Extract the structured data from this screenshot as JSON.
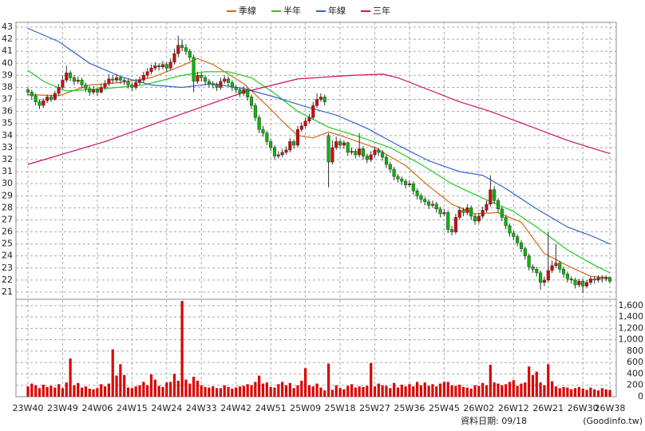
{
  "chart_data": {
    "type": "candlestick",
    "legend": "top",
    "grid": true,
    "up_color": "#dd0000",
    "down_color": "#00bb00",
    "volume_color": "#dd0000",
    "date_note": "資料日期: 09/18",
    "source": "(Goodinfo.tw)",
    "ylim": [
      20.4,
      43.4
    ],
    "yticks": [
      21,
      22,
      23,
      24,
      25,
      26,
      27,
      28,
      29,
      30,
      31,
      32,
      33,
      34,
      35,
      36,
      37,
      38,
      39,
      40,
      41,
      42,
      43
    ],
    "vol_ylim": [
      0,
      1710
    ],
    "vol_yticks": [
      0,
      200,
      400,
      600,
      800,
      {
        "value": 1000,
        "label": "1,000"
      },
      {
        "value": 1200,
        "label": "1,200"
      },
      {
        "value": 1400,
        "label": "1,400"
      },
      {
        "value": 1600,
        "label": "1,600"
      }
    ],
    "categories": [
      "23W40",
      null,
      null,
      null,
      null,
      null,
      null,
      null,
      null,
      "23W49",
      null,
      null,
      null,
      null,
      null,
      null,
      null,
      null,
      "24W06",
      null,
      null,
      null,
      null,
      null,
      null,
      null,
      null,
      "24W15",
      null,
      null,
      null,
      null,
      null,
      null,
      null,
      null,
      "24W24",
      null,
      null,
      null,
      null,
      null,
      null,
      null,
      null,
      "24W33",
      null,
      null,
      null,
      null,
      null,
      null,
      null,
      null,
      "24W42",
      null,
      null,
      null,
      null,
      null,
      null,
      null,
      null,
      "24W51",
      null,
      null,
      null,
      null,
      null,
      null,
      null,
      null,
      "25W09",
      null,
      null,
      null,
      null,
      null,
      null,
      null,
      null,
      "25W18",
      null,
      null,
      null,
      null,
      null,
      null,
      null,
      null,
      "25W27",
      null,
      null,
      null,
      null,
      null,
      null,
      null,
      null,
      "25W36",
      null,
      null,
      null,
      null,
      null,
      null,
      null,
      null,
      "25W45",
      null,
      null,
      null,
      null,
      null,
      null,
      null,
      null,
      "26W02",
      null,
      null,
      null,
      null,
      null,
      null,
      null,
      null,
      "26W12",
      null,
      null,
      null,
      null,
      null,
      null,
      null,
      null,
      "26W21",
      null,
      null,
      null,
      null,
      null,
      null,
      null,
      null,
      "26W30",
      null,
      null,
      null,
      null,
      null,
      null,
      "26W38"
    ],
    "ohlc": [
      [
        37.8,
        38.0,
        37.3,
        37.6
      ],
      [
        37.6,
        37.8,
        37.0,
        37.3
      ],
      [
        37.3,
        37.5,
        36.5,
        36.8
      ],
      [
        36.8,
        37.0,
        36.2,
        36.5
      ],
      [
        36.5,
        37.1,
        36.3,
        36.9
      ],
      [
        36.9,
        37.4,
        36.7,
        37.2
      ],
      [
        37.2,
        37.4,
        36.8,
        37.0
      ],
      [
        37.0,
        37.7,
        36.9,
        37.5
      ],
      [
        37.5,
        38.3,
        37.3,
        38.0
      ],
      [
        38.0,
        39.0,
        37.8,
        38.6
      ],
      [
        38.6,
        39.8,
        38.4,
        39.2
      ],
      [
        39.2,
        39.4,
        38.5,
        38.8
      ],
      [
        38.8,
        39.0,
        38.2,
        38.5
      ],
      [
        38.5,
        38.9,
        38.3,
        38.6
      ],
      [
        38.6,
        38.8,
        37.9,
        38.2
      ],
      [
        38.2,
        38.4,
        37.6,
        37.9
      ],
      [
        37.9,
        38.1,
        37.3,
        37.6
      ],
      [
        37.6,
        38.1,
        37.4,
        37.8
      ],
      [
        37.8,
        38.0,
        37.3,
        37.6
      ],
      [
        37.6,
        38.3,
        37.5,
        38.0
      ],
      [
        38.0,
        38.6,
        37.8,
        38.3
      ],
      [
        38.3,
        39.1,
        38.1,
        38.7
      ],
      [
        38.7,
        39.0,
        38.3,
        38.6
      ],
      [
        38.6,
        39.1,
        38.4,
        38.8
      ],
      [
        38.8,
        39.0,
        38.3,
        38.6
      ],
      [
        38.6,
        38.8,
        38.2,
        38.5
      ],
      [
        38.5,
        38.7,
        37.9,
        38.2
      ],
      [
        38.2,
        38.4,
        37.7,
        38.0
      ],
      [
        38.0,
        38.7,
        37.8,
        38.4
      ],
      [
        38.4,
        38.9,
        38.2,
        38.6
      ],
      [
        38.6,
        39.3,
        38.4,
        39.0
      ],
      [
        39.0,
        39.6,
        38.8,
        39.3
      ],
      [
        39.3,
        39.9,
        39.1,
        39.6
      ],
      [
        39.6,
        40.1,
        39.4,
        39.8
      ],
      [
        39.8,
        40.0,
        39.4,
        39.7
      ],
      [
        39.7,
        40.2,
        39.5,
        39.9
      ],
      [
        39.9,
        40.1,
        39.3,
        39.6
      ],
      [
        39.6,
        40.4,
        39.4,
        40.1
      ],
      [
        40.1,
        41.2,
        39.9,
        40.8
      ],
      [
        40.8,
        42.3,
        40.5,
        41.5
      ],
      [
        41.5,
        42.0,
        41.0,
        41.3
      ],
      [
        41.3,
        41.6,
        40.7,
        41.0
      ],
      [
        41.0,
        41.2,
        40.2,
        40.5
      ],
      [
        40.5,
        40.7,
        37.6,
        38.5
      ],
      [
        38.5,
        39.3,
        38.3,
        39.0
      ],
      [
        39.0,
        39.2,
        38.5,
        38.8
      ],
      [
        38.8,
        39.0,
        38.2,
        38.5
      ],
      [
        38.5,
        38.7,
        38.0,
        38.3
      ],
      [
        38.3,
        38.5,
        37.9,
        38.2
      ],
      [
        38.2,
        38.4,
        37.7,
        38.0
      ],
      [
        38.0,
        38.8,
        37.8,
        38.5
      ],
      [
        38.5,
        39.0,
        38.3,
        38.7
      ],
      [
        38.7,
        38.9,
        38.1,
        38.4
      ],
      [
        38.4,
        38.6,
        37.7,
        38.0
      ],
      [
        38.0,
        38.2,
        37.5,
        37.8
      ],
      [
        37.8,
        38.0,
        37.2,
        37.5
      ],
      [
        37.5,
        38.1,
        37.3,
        37.8
      ],
      [
        37.8,
        38.0,
        36.9,
        37.2
      ],
      [
        37.2,
        37.4,
        36.2,
        36.5
      ],
      [
        36.5,
        36.7,
        35.2,
        35.5
      ],
      [
        35.5,
        35.7,
        34.2,
        34.5
      ],
      [
        34.5,
        34.8,
        33.9,
        34.2
      ],
      [
        34.2,
        34.4,
        33.2,
        33.5
      ],
      [
        33.5,
        33.7,
        32.7,
        33.0
      ],
      [
        33.0,
        33.2,
        32.0,
        32.3
      ],
      [
        32.3,
        32.7,
        32.1,
        32.4
      ],
      [
        32.4,
        32.9,
        32.2,
        32.6
      ],
      [
        32.6,
        33.1,
        32.4,
        32.8
      ],
      [
        32.8,
        33.8,
        32.6,
        33.5
      ],
      [
        33.5,
        33.7,
        32.9,
        33.2
      ],
      [
        33.2,
        34.8,
        33.0,
        34.5
      ],
      [
        34.5,
        35.1,
        34.3,
        34.8
      ],
      [
        34.8,
        35.5,
        34.6,
        35.2
      ],
      [
        35.2,
        35.8,
        35.0,
        35.5
      ],
      [
        35.5,
        36.8,
        35.3,
        36.5
      ],
      [
        36.5,
        37.5,
        36.3,
        37.0
      ],
      [
        37.0,
        37.5,
        36.8,
        37.2
      ],
      [
        37.2,
        37.4,
        36.5,
        36.8
      ],
      [
        34.0,
        34.2,
        29.7,
        31.8
      ],
      [
        31.8,
        33.6,
        31.6,
        33.0
      ],
      [
        33.0,
        33.9,
        32.8,
        33.5
      ],
      [
        33.5,
        33.7,
        32.9,
        33.2
      ],
      [
        33.2,
        33.6,
        32.9,
        33.4
      ],
      [
        33.4,
        33.5,
        32.3,
        32.6
      ],
      [
        32.6,
        33.0,
        32.4,
        32.7
      ],
      [
        32.7,
        32.9,
        32.1,
        32.4
      ],
      [
        32.4,
        34.2,
        32.2,
        32.9
      ],
      [
        32.9,
        33.1,
        32.0,
        32.3
      ],
      [
        32.3,
        32.5,
        31.7,
        32.0
      ],
      [
        32.0,
        32.7,
        31.8,
        32.4
      ],
      [
        32.4,
        33.1,
        32.2,
        32.8
      ],
      [
        32.8,
        33.0,
        32.3,
        32.6
      ],
      [
        32.6,
        32.8,
        31.9,
        32.2
      ],
      [
        32.2,
        32.4,
        31.3,
        31.6
      ],
      [
        31.6,
        31.8,
        30.9,
        31.2
      ],
      [
        31.2,
        31.4,
        30.3,
        30.6
      ],
      [
        30.6,
        30.8,
        30.1,
        30.4
      ],
      [
        30.4,
        30.6,
        29.9,
        30.2
      ],
      [
        30.2,
        30.4,
        29.6,
        29.9
      ],
      [
        29.9,
        30.3,
        29.7,
        30.0
      ],
      [
        30.0,
        30.2,
        29.1,
        29.4
      ],
      [
        29.4,
        29.6,
        28.7,
        29.0
      ],
      [
        29.0,
        29.2,
        28.4,
        28.7
      ],
      [
        28.7,
        28.9,
        28.2,
        28.5
      ],
      [
        28.5,
        28.7,
        27.9,
        28.2
      ],
      [
        28.2,
        28.6,
        28.0,
        28.3
      ],
      [
        28.3,
        28.5,
        27.6,
        27.9
      ],
      [
        27.9,
        28.1,
        27.2,
        27.5
      ],
      [
        27.5,
        27.9,
        27.3,
        27.6
      ],
      [
        27.6,
        27.8,
        25.9,
        26.2
      ],
      [
        26.2,
        26.5,
        25.7,
        26.0
      ],
      [
        26.0,
        27.5,
        25.8,
        27.2
      ],
      [
        27.2,
        28.1,
        27.0,
        27.8
      ],
      [
        27.8,
        28.0,
        27.3,
        27.6
      ],
      [
        27.6,
        28.3,
        27.4,
        28.0
      ],
      [
        28.0,
        28.2,
        27.0,
        27.3
      ],
      [
        27.3,
        27.5,
        26.6,
        26.9
      ],
      [
        26.9,
        27.6,
        26.7,
        27.3
      ],
      [
        27.3,
        28.1,
        27.1,
        27.8
      ],
      [
        27.8,
        28.6,
        27.6,
        28.3
      ],
      [
        28.3,
        30.7,
        28.1,
        29.5
      ],
      [
        29.5,
        29.8,
        28.3,
        28.6
      ],
      [
        28.6,
        28.8,
        27.6,
        27.9
      ],
      [
        27.9,
        28.1,
        26.9,
        27.2
      ],
      [
        27.2,
        27.4,
        26.2,
        26.5
      ],
      [
        26.5,
        26.7,
        25.6,
        25.9
      ],
      [
        25.9,
        26.1,
        25.3,
        25.6
      ],
      [
        25.6,
        25.8,
        24.8,
        25.1
      ],
      [
        25.1,
        25.3,
        24.3,
        24.6
      ],
      [
        24.6,
        24.8,
        23.7,
        24.0
      ],
      [
        24.0,
        24.2,
        22.8,
        23.1
      ],
      [
        23.1,
        23.3,
        22.6,
        22.9
      ],
      [
        22.9,
        23.1,
        22.3,
        22.6
      ],
      [
        22.6,
        22.8,
        21.2,
        21.8
      ],
      [
        21.8,
        22.3,
        21.5,
        22.0
      ],
      [
        22.0,
        26.0,
        21.8,
        22.8
      ],
      [
        22.8,
        23.6,
        22.6,
        23.2
      ],
      [
        23.2,
        25.0,
        23.0,
        23.4
      ],
      [
        23.4,
        23.6,
        22.6,
        22.9
      ],
      [
        22.9,
        23.1,
        22.2,
        22.5
      ],
      [
        22.5,
        22.7,
        21.8,
        22.1
      ],
      [
        22.1,
        22.3,
        21.7,
        22.0
      ],
      [
        22.0,
        22.2,
        21.3,
        21.6
      ],
      [
        21.6,
        22.1,
        21.4,
        21.9
      ],
      [
        21.9,
        22.1,
        20.9,
        21.5
      ],
      [
        21.5,
        22.0,
        21.3,
        21.8
      ],
      [
        21.8,
        22.3,
        21.6,
        22.1
      ],
      [
        22.1,
        22.3,
        21.7,
        22.0
      ],
      [
        22.0,
        22.4,
        21.8,
        22.2
      ],
      [
        22.2,
        22.4,
        21.8,
        22.1
      ],
      [
        22.1,
        22.4,
        21.9,
        22.2
      ],
      [
        22.2,
        22.3,
        21.7,
        21.9
      ]
    ],
    "volume": [
      180,
      230,
      200,
      150,
      210,
      170,
      190,
      160,
      220,
      150,
      250,
      670,
      200,
      240,
      160,
      180,
      140,
      130,
      150,
      220,
      180,
      230,
      830,
      370,
      570,
      380,
      160,
      150,
      180,
      200,
      260,
      200,
      390,
      300,
      190,
      170,
      250,
      260,
      400,
      280,
      1680,
      300,
      230,
      350,
      280,
      200,
      170,
      160,
      180,
      150,
      150,
      200,
      170,
      140,
      160,
      180,
      190,
      220,
      200,
      260,
      370,
      230,
      250,
      170,
      160,
      220,
      260,
      200,
      240,
      150,
      200,
      280,
      500,
      200,
      180,
      230,
      160,
      110,
      580,
      120,
      200,
      150,
      130,
      190,
      220,
      160,
      180,
      170,
      190,
      590,
      180,
      230,
      200,
      190,
      150,
      240,
      160,
      210,
      180,
      220,
      180,
      260,
      200,
      250,
      190,
      220,
      180,
      230,
      260,
      260,
      200,
      190,
      210,
      170,
      160,
      140,
      200,
      190,
      240,
      200,
      560,
      250,
      230,
      200,
      220,
      260,
      290,
      190,
      230,
      250,
      530,
      380,
      440,
      250,
      200,
      570,
      270,
      180,
      150,
      170,
      160,
      130,
      150,
      170,
      140,
      120,
      160,
      130,
      110,
      150,
      130,
      120
    ],
    "lines": [
      {
        "name": "季線",
        "color": "#d2691e",
        "x": [
          0,
          8,
          16,
          24,
          32,
          40,
          44,
          48,
          56,
          62,
          66,
          70,
          74,
          78,
          82,
          90,
          98,
          104,
          110,
          116,
          122,
          128,
          134,
          140,
          146,
          151
        ],
        "values": [
          37.4,
          37.3,
          38.2,
          38.4,
          38.8,
          39.8,
          40.4,
          39.9,
          38.3,
          36.5,
          35.2,
          34.0,
          33.8,
          34.3,
          33.9,
          33.0,
          31.5,
          29.8,
          28.3,
          27.5,
          27.6,
          26.8,
          24.2,
          23.2,
          22.3,
          22.2
        ]
      },
      {
        "name": "半年",
        "color": "#22cc22",
        "x": [
          0,
          4,
          10,
          20,
          30,
          40,
          46,
          52,
          58,
          64,
          70,
          78,
          86,
          94,
          102,
          110,
          118,
          126,
          132,
          140,
          146,
          151
        ],
        "values": [
          39.4,
          38.5,
          37.7,
          37.9,
          38.2,
          39.0,
          39.3,
          39.3,
          38.8,
          37.5,
          36.0,
          34.7,
          33.9,
          33.0,
          31.6,
          30.0,
          28.8,
          27.7,
          26.4,
          24.5,
          23.4,
          22.6
        ]
      },
      {
        "name": "年線",
        "color": "#3366cc",
        "x": [
          0,
          8,
          16,
          24,
          32,
          40,
          48,
          56,
          64,
          72,
          80,
          88,
          96,
          104,
          112,
          118,
          124,
          132,
          140,
          146,
          151
        ],
        "values": [
          42.9,
          41.8,
          40.0,
          38.9,
          38.2,
          38.0,
          38.3,
          37.9,
          37.2,
          36.4,
          35.7,
          34.6,
          33.2,
          31.9,
          31.0,
          30.7,
          29.6,
          27.9,
          26.4,
          25.7,
          25.0
        ]
      },
      {
        "name": "三年",
        "color": "#cc1166",
        "x": [
          0,
          20,
          40,
          56,
          70,
          84,
          92,
          96,
          104,
          112,
          120,
          130,
          140,
          151
        ],
        "values": [
          31.6,
          33.5,
          35.8,
          37.6,
          38.7,
          39.0,
          39.1,
          38.8,
          37.8,
          36.8,
          36.0,
          34.8,
          33.6,
          32.5
        ]
      }
    ]
  }
}
